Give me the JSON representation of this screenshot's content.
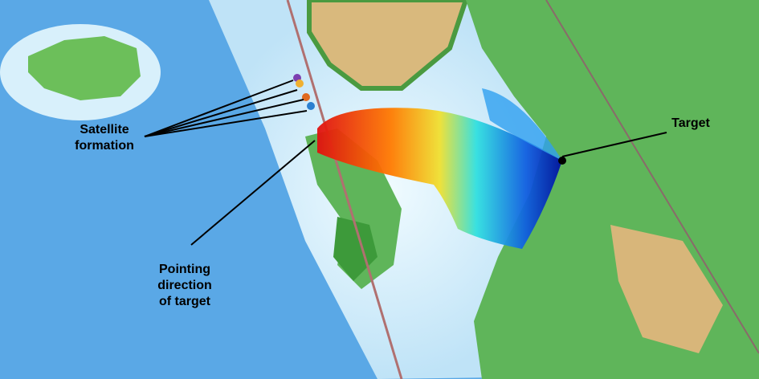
{
  "labels": {
    "satellite_formation": "Satellite\nformation",
    "target": "Target",
    "pointing": "Pointing\ndirection\nof target"
  },
  "satellites": [
    {
      "color": "#7b3fb0"
    },
    {
      "color": "#f0b030"
    },
    {
      "color": "#e06a20"
    },
    {
      "color": "#2a7fd0"
    }
  ],
  "colors": {
    "ocean_deep": "#4d9fe0",
    "ocean_shallow": "#e8f6fd",
    "land": "#5fb55a",
    "land_high": "#d8b67a",
    "orbit": "#b07070"
  }
}
